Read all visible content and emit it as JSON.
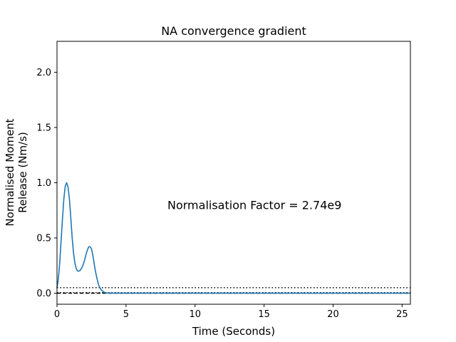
{
  "chart_data": {
    "type": "line",
    "title": "NA convergence gradient",
    "xlabel": "Time (Seconds)",
    "ylabel_lines": [
      "Normalised Moment",
      "Release (Nm/s)"
    ],
    "xlim": [
      0,
      25.6
    ],
    "ylim": [
      -0.1,
      2.28
    ],
    "xticks": [
      0,
      5,
      10,
      15,
      20,
      25
    ],
    "yticks": [
      0.0,
      0.5,
      1.0,
      1.5,
      2.0
    ],
    "xtick_labels": [
      "0",
      "5",
      "10",
      "15",
      "20",
      "25"
    ],
    "ytick_labels": [
      "0.0",
      "0.5",
      "1.0",
      "1.5",
      "2.0"
    ],
    "grid": false,
    "annotation": {
      "text": "Normalisation Factor = 2.74e9",
      "x": 8.0,
      "y": 0.8
    },
    "reference_lines": [
      {
        "y": 0.05,
        "style": "dotted",
        "color": "#000000"
      },
      {
        "y": 0.005,
        "style": "dotted",
        "color": "#000000"
      },
      {
        "y": 0.0,
        "style": "dashed",
        "color": "#000000"
      }
    ],
    "series": [
      {
        "color": "#1f77b4",
        "x": [
          0.0,
          0.1,
          0.2,
          0.3,
          0.4,
          0.5,
          0.6,
          0.7,
          0.8,
          0.9,
          1.0,
          1.1,
          1.2,
          1.3,
          1.4,
          1.5,
          1.6,
          1.7,
          1.8,
          1.9,
          2.0,
          2.1,
          2.2,
          2.3,
          2.4,
          2.5,
          2.6,
          2.7,
          2.8,
          2.9,
          3.0,
          3.1,
          3.2,
          3.3,
          3.4,
          3.5,
          3.6,
          3.7,
          3.8,
          3.9,
          4.0,
          4.2,
          4.5,
          5.0,
          6.0,
          8.0,
          10.0,
          15.0,
          20.0,
          25.6
        ],
        "y": [
          0.05,
          0.13,
          0.28,
          0.48,
          0.68,
          0.86,
          0.97,
          1.0,
          0.96,
          0.85,
          0.68,
          0.5,
          0.36,
          0.27,
          0.22,
          0.2,
          0.2,
          0.21,
          0.23,
          0.26,
          0.3,
          0.35,
          0.39,
          0.42,
          0.42,
          0.4,
          0.34,
          0.26,
          0.19,
          0.13,
          0.08,
          0.05,
          0.03,
          0.02,
          0.01,
          0.005,
          0.003,
          0.002,
          0.001,
          0.0005,
          0.0,
          0.0,
          0.0,
          0.0,
          0.0,
          0.0,
          0.0,
          0.0,
          0.0,
          0.0
        ]
      }
    ]
  }
}
